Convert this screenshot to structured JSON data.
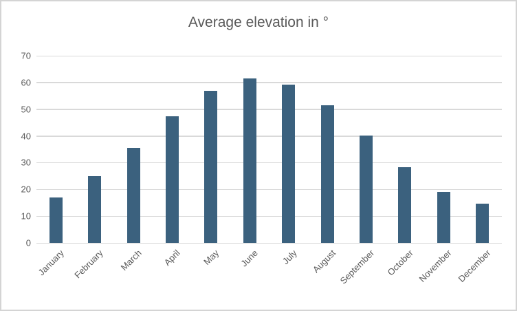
{
  "chart_data": {
    "type": "bar",
    "title": "Average elevation in °",
    "categories": [
      "January",
      "February",
      "March",
      "April",
      "May",
      "June",
      "July",
      "August",
      "September",
      "October",
      "November",
      "December"
    ],
    "values": [
      17,
      25,
      35.5,
      47.4,
      56.9,
      61.4,
      59.3,
      51.5,
      40.2,
      28.4,
      19,
      14.8
    ],
    "xlabel": "",
    "ylabel": "",
    "ylim": [
      0,
      70
    ],
    "yticks": [
      0,
      10,
      20,
      30,
      40,
      50,
      60,
      70
    ],
    "grid": true,
    "legend": false,
    "colors": {
      "bar": "#3B617E",
      "gridline": "#D9D9D9",
      "text": "#595959",
      "border": "#D4D4D4",
      "background": "#FFFFFF"
    }
  }
}
